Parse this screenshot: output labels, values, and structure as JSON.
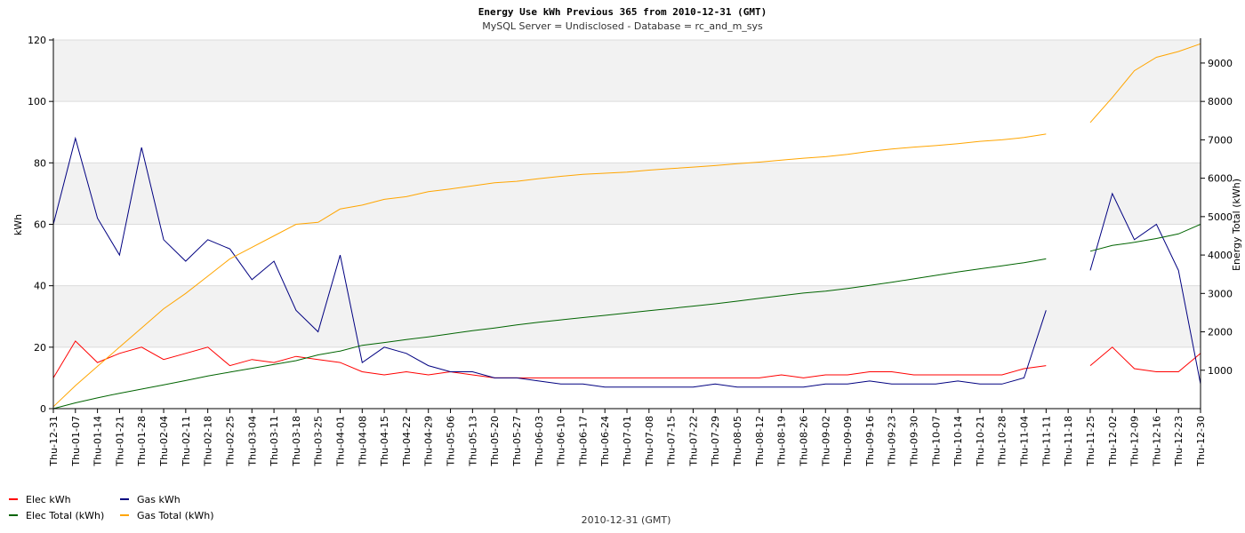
{
  "chart_data": {
    "type": "line",
    "title": "Energy Use kWh Previous 365 from 2010-12-31 (GMT)",
    "subtitle": "MySQL Server = Undisclosed - Database = rc_and_m_sys",
    "ylabel": "kWh",
    "y2label": "Energy Total (kWh)",
    "footer": "2010-12-31 (GMT)",
    "ylim": [
      0,
      120
    ],
    "y2lim": [
      0,
      9600
    ],
    "yticks": [
      0,
      20,
      40,
      60,
      80,
      100,
      120
    ],
    "y2ticks": [
      1000,
      2000,
      3000,
      4000,
      5000,
      6000,
      7000,
      8000,
      9000
    ],
    "grid": true,
    "legend_placement": "bottom-left",
    "x_tick_labels": [
      "Thu-12-31",
      "Thu-01-07",
      "Thu-01-14",
      "Thu-01-21",
      "Thu-01-28",
      "Thu-02-04",
      "Thu-02-11",
      "Thu-02-18",
      "Thu-02-25",
      "Thu-03-04",
      "Thu-03-11",
      "Thu-03-18",
      "Thu-03-25",
      "Thu-04-01",
      "Thu-04-08",
      "Thu-04-15",
      "Thu-04-22",
      "Thu-04-29",
      "Thu-05-06",
      "Thu-05-13",
      "Thu-05-20",
      "Thu-05-27",
      "Thu-06-03",
      "Thu-06-10",
      "Thu-06-17",
      "Thu-06-24",
      "Thu-07-01",
      "Thu-07-08",
      "Thu-07-15",
      "Thu-07-22",
      "Thu-07-29",
      "Thu-08-05",
      "Thu-08-12",
      "Thu-08-19",
      "Thu-08-26",
      "Thu-09-02",
      "Thu-09-09",
      "Thu-09-16",
      "Thu-09-23",
      "Thu-09-30",
      "Thu-10-07",
      "Thu-10-14",
      "Thu-10-21",
      "Thu-10-28",
      "Thu-11-04",
      "Thu-11-11",
      "Thu-11-18",
      "Thu-11-25",
      "Thu-12-02",
      "Thu-12-09",
      "Thu-12-16",
      "Thu-12-23",
      "Thu-12-30"
    ],
    "series": [
      {
        "name": "Elec kWh",
        "axis": "left",
        "color": "#ff0000",
        "x": [
          0,
          7,
          14,
          21,
          28,
          35,
          42,
          49,
          56,
          63,
          70,
          77,
          84,
          91,
          98,
          105,
          112,
          119,
          126,
          133,
          140,
          147,
          154,
          161,
          168,
          175,
          182,
          189,
          196,
          203,
          210,
          217,
          224,
          231,
          238,
          245,
          252,
          259,
          266,
          273,
          280,
          287,
          294,
          301,
          308,
          315,
          322,
          329,
          336,
          343,
          350,
          357,
          364
        ],
        "values": [
          10,
          22,
          15,
          18,
          20,
          16,
          18,
          20,
          14,
          16,
          15,
          17,
          16,
          15,
          12,
          11,
          12,
          11,
          12,
          11,
          10,
          10,
          10,
          10,
          10,
          10,
          10,
          10,
          10,
          10,
          10,
          10,
          10,
          11,
          10,
          11,
          11,
          12,
          12,
          11,
          11,
          11,
          11,
          11,
          13,
          14,
          null,
          14,
          20,
          13,
          12,
          12,
          18
        ]
      },
      {
        "name": "Gas kWh",
        "axis": "left",
        "color": "#000080",
        "x": [
          0,
          7,
          14,
          21,
          28,
          35,
          42,
          49,
          56,
          63,
          70,
          77,
          84,
          91,
          98,
          105,
          112,
          119,
          126,
          133,
          140,
          147,
          154,
          161,
          168,
          175,
          182,
          189,
          196,
          203,
          210,
          217,
          224,
          231,
          238,
          245,
          252,
          259,
          266,
          273,
          280,
          287,
          294,
          301,
          308,
          315,
          322,
          329,
          336,
          343,
          350,
          357,
          364
        ],
        "values": [
          60,
          88,
          62,
          50,
          85,
          55,
          48,
          55,
          52,
          42,
          48,
          32,
          25,
          50,
          15,
          20,
          18,
          14,
          12,
          12,
          10,
          10,
          9,
          8,
          8,
          7,
          7,
          7,
          7,
          7,
          8,
          7,
          7,
          7,
          7,
          8,
          8,
          9,
          8,
          8,
          8,
          9,
          8,
          8,
          10,
          32,
          null,
          45,
          70,
          55,
          60,
          45,
          8
        ]
      },
      {
        "name": "Elec Total (kWh)",
        "axis": "right",
        "color": "#006400",
        "x": [
          0,
          7,
          14,
          21,
          28,
          35,
          42,
          49,
          56,
          63,
          70,
          77,
          84,
          91,
          98,
          105,
          112,
          119,
          126,
          133,
          140,
          147,
          154,
          161,
          168,
          175,
          182,
          189,
          196,
          203,
          210,
          217,
          224,
          231,
          238,
          245,
          252,
          259,
          266,
          273,
          280,
          287,
          294,
          301,
          308,
          315,
          322,
          329,
          336,
          343,
          350,
          357,
          364
        ],
        "values": [
          0,
          150,
          280,
          400,
          510,
          620,
          730,
          850,
          950,
          1050,
          1150,
          1250,
          1400,
          1500,
          1650,
          1720,
          1800,
          1870,
          1950,
          2030,
          2100,
          2180,
          2250,
          2310,
          2370,
          2430,
          2490,
          2550,
          2610,
          2670,
          2730,
          2800,
          2870,
          2940,
          3010,
          3060,
          3130,
          3210,
          3290,
          3380,
          3470,
          3560,
          3640,
          3720,
          3800,
          3900,
          null,
          4100,
          4250,
          4330,
          4430,
          4550,
          4800
        ]
      },
      {
        "name": "Gas Total (kWh)",
        "axis": "right",
        "color": "#ffa500",
        "x": [
          0,
          7,
          14,
          21,
          28,
          35,
          42,
          49,
          56,
          63,
          70,
          77,
          84,
          91,
          98,
          105,
          112,
          119,
          126,
          133,
          140,
          147,
          154,
          161,
          168,
          175,
          182,
          189,
          196,
          203,
          210,
          217,
          224,
          231,
          238,
          245,
          252,
          259,
          266,
          273,
          280,
          287,
          294,
          301,
          308,
          315,
          322,
          329,
          336,
          343,
          350,
          357,
          364
        ],
        "values": [
          50,
          600,
          1100,
          1600,
          2100,
          2600,
          3000,
          3450,
          3900,
          4200,
          4500,
          4800,
          4850,
          5200,
          5300,
          5450,
          5520,
          5650,
          5720,
          5800,
          5880,
          5920,
          5990,
          6050,
          6100,
          6130,
          6160,
          6210,
          6250,
          6290,
          6330,
          6380,
          6420,
          6470,
          6520,
          6560,
          6620,
          6700,
          6760,
          6810,
          6850,
          6900,
          6960,
          7000,
          7060,
          7150,
          null,
          7450,
          8100,
          8800,
          9150,
          9300,
          9500
        ]
      }
    ]
  }
}
